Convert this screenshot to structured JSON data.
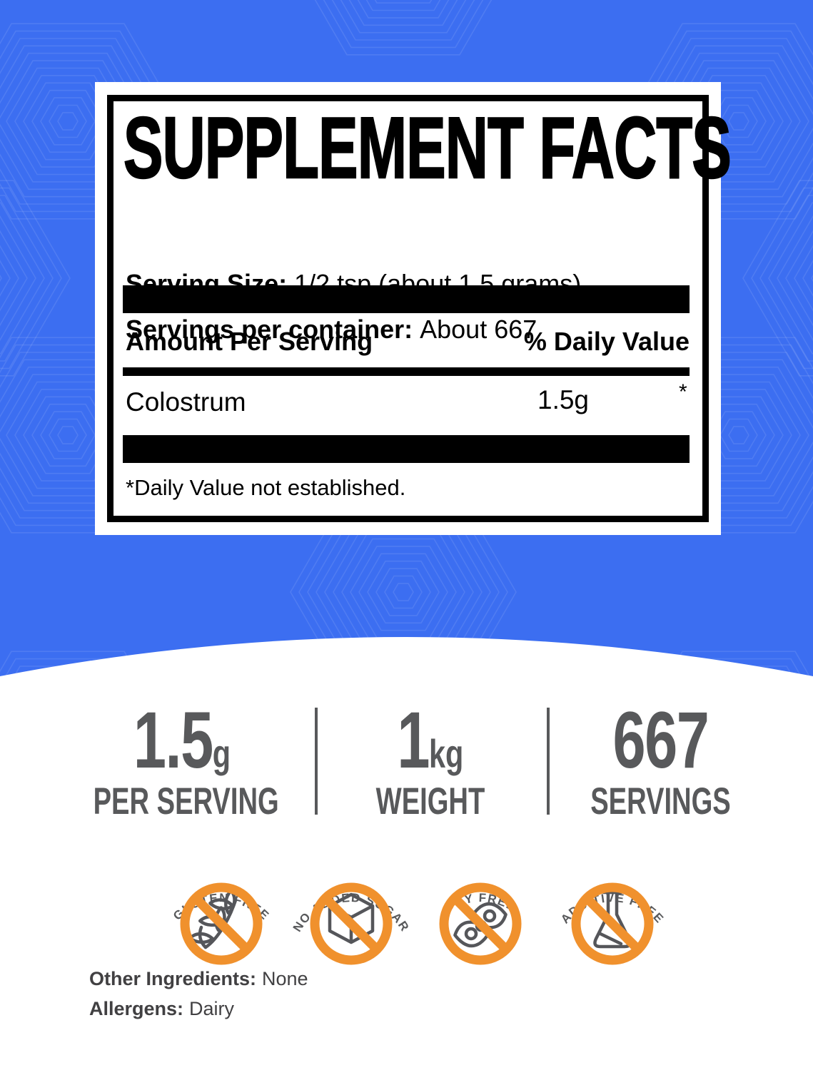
{
  "colors": {
    "background_blue": "#3C6EF1",
    "prohibition_orange": "#F0912D",
    "stat_gray": "#58595B",
    "note_gray": "#414042"
  },
  "facts_panel": {
    "title": "SUPPLEMENT FACTS",
    "serving_size_label": "Serving Size:",
    "serving_size_value": "1/2 tsp (about 1.5 grams)",
    "servings_label": "Servings per container:",
    "servings_value": "About 667",
    "amount_header": "Amount Per Serving",
    "daily_value_header": "% Daily Value",
    "ingredient": {
      "name": "Colostrum",
      "amount": "1.5g",
      "daily_value": "*"
    },
    "footnote": "*Daily Value not established."
  },
  "stats": [
    {
      "value": "1.5",
      "unit": "g",
      "label": "PER SERVING"
    },
    {
      "value": "1",
      "unit": "kg",
      "label": "WEIGHT"
    },
    {
      "value": "667",
      "unit": "",
      "label": "SERVINGS"
    }
  ],
  "badges": [
    {
      "label": "GLUTEN FREE",
      "icon": "wheat-icon"
    },
    {
      "label": "NO ADDED SUGAR",
      "icon": "sugar-cube-icon"
    },
    {
      "label": "SOY FREE",
      "icon": "soybean-icon"
    },
    {
      "label": "ADDITIVE FREE",
      "icon": "flask-icon"
    }
  ],
  "notes": {
    "other_ingredients_label": "Other Ingredients:",
    "other_ingredients_value": "None",
    "allergens_label": "Allergens:",
    "allergens_value": "Dairy"
  }
}
